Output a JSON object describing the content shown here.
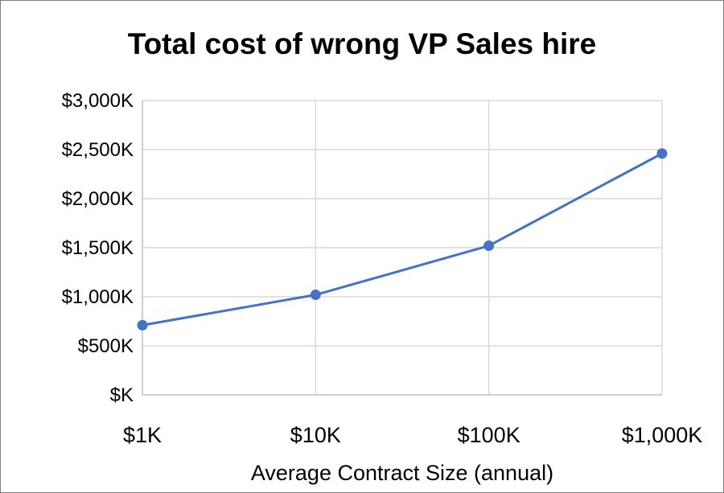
{
  "chart_data": {
    "type": "line",
    "title": "Total cost of wrong VP Sales hire",
    "xlabel": "Average Contract Size (annual)",
    "ylabel": "",
    "categories": [
      "$1K",
      "$10K",
      "$100K",
      "$1,000K"
    ],
    "series": [
      {
        "name": "Total cost of wrong VP Sales hire",
        "values": [
          710,
          1020,
          1520,
          2460
        ]
      }
    ],
    "ylim": [
      0,
      3000
    ],
    "yticks": [
      0,
      500,
      1000,
      1500,
      2000,
      2500,
      3000
    ],
    "ytick_labels": [
      "$K",
      "$500K",
      "$1,000K",
      "$1,500K",
      "$2,000K",
      "$2,500K",
      "$3,000K"
    ],
    "grid": true,
    "legend": "none",
    "colors": {
      "line": "#4472c4",
      "grid": "#d9d9d9",
      "axis": "#bfbfbf"
    }
  }
}
